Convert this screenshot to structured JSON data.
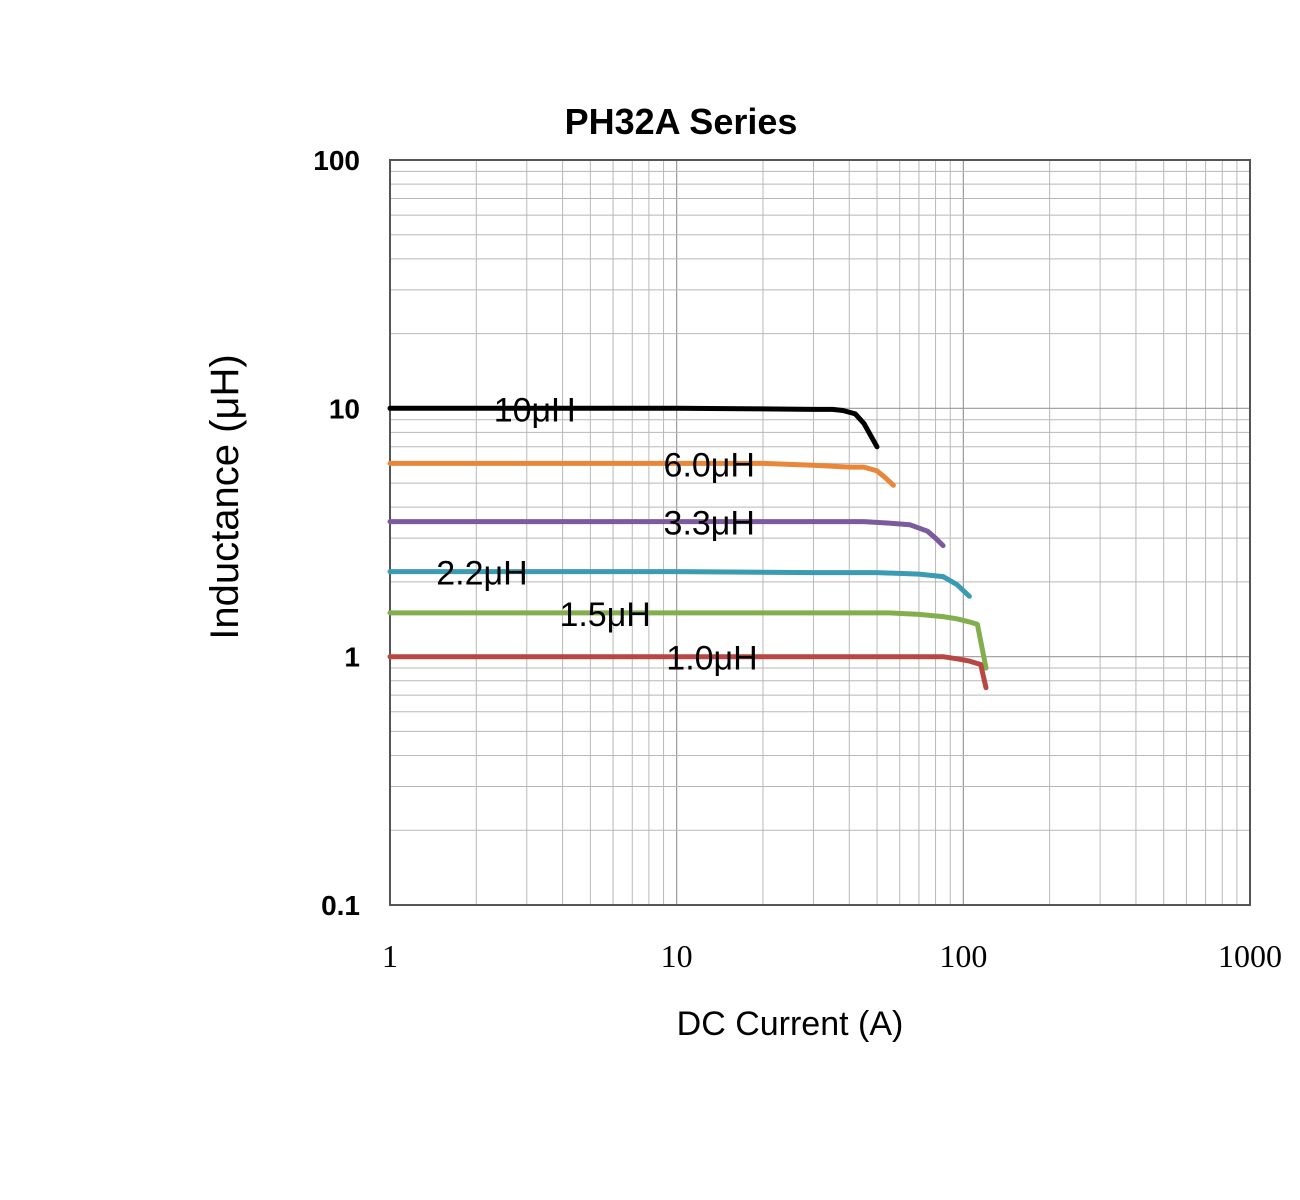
{
  "chart_data": {
    "type": "line",
    "title": "PH32A  Series",
    "xlabel": "DC Current (A)",
    "ylabel": "Inductance (μH)",
    "x_scale": "log",
    "y_scale": "log",
    "xlim": [
      1,
      1000
    ],
    "ylim": [
      0.1,
      100
    ],
    "x_ticks": [
      "1",
      "10",
      "100",
      "1000"
    ],
    "y_ticks": [
      "100",
      "10",
      "1",
      "0.1"
    ],
    "grid": true,
    "legend": "none",
    "series": [
      {
        "name": "10μH",
        "color": "#000000",
        "x": [
          1,
          5,
          10,
          20,
          30,
          35,
          38,
          42,
          45,
          50
        ],
        "y": [
          10,
          10,
          10,
          9.95,
          9.9,
          9.9,
          9.8,
          9.5,
          8.7,
          7.0
        ]
      },
      {
        "name": "6.0μH",
        "color": "#e8873a",
        "x": [
          1,
          5,
          10,
          20,
          30,
          40,
          45,
          50,
          53,
          57
        ],
        "y": [
          6.0,
          6.0,
          6.0,
          6.0,
          5.9,
          5.8,
          5.8,
          5.6,
          5.3,
          4.9
        ]
      },
      {
        "name": "3.3μH",
        "color": "#7b5a9e",
        "x": [
          1,
          10,
          30,
          45,
          55,
          65,
          75,
          80,
          85
        ],
        "y": [
          3.5,
          3.5,
          3.5,
          3.5,
          3.45,
          3.4,
          3.2,
          3.0,
          2.8
        ]
      },
      {
        "name": "2.2μH",
        "color": "#3a9bb2",
        "x": [
          1,
          10,
          30,
          50,
          70,
          85,
          95,
          105
        ],
        "y": [
          2.2,
          2.2,
          2.18,
          2.18,
          2.15,
          2.1,
          1.95,
          1.75
        ]
      },
      {
        "name": "1.5μH",
        "color": "#82ae4e",
        "x": [
          1,
          10,
          30,
          55,
          70,
          85,
          95,
          105,
          112,
          120
        ],
        "y": [
          1.5,
          1.5,
          1.5,
          1.5,
          1.48,
          1.45,
          1.42,
          1.38,
          1.35,
          0.9
        ]
      },
      {
        "name": "1.0μH",
        "color": "#b84743",
        "x": [
          1,
          10,
          30,
          55,
          75,
          85,
          95,
          105,
          115,
          120
        ],
        "y": [
          1.0,
          1.0,
          1.0,
          1.0,
          1.0,
          1.0,
          0.98,
          0.96,
          0.93,
          0.75
        ]
      }
    ],
    "annotations": [
      {
        "text": "10μH",
        "series": 0,
        "x": 2.3,
        "y": 10
      },
      {
        "text": "6.0μH",
        "series": 1,
        "x": 9.0,
        "y": 6.0
      },
      {
        "text": "3.3μH",
        "series": 2,
        "x": 9.0,
        "y": 3.5
      },
      {
        "text": "2.2μH",
        "series": 3,
        "x": 1.45,
        "y": 2.2
      },
      {
        "text": "1.5μH",
        "series": 4,
        "x": 3.9,
        "y": 1.5
      },
      {
        "text": "1.0μH",
        "series": 5,
        "x": 9.2,
        "y": 1.0
      }
    ]
  }
}
